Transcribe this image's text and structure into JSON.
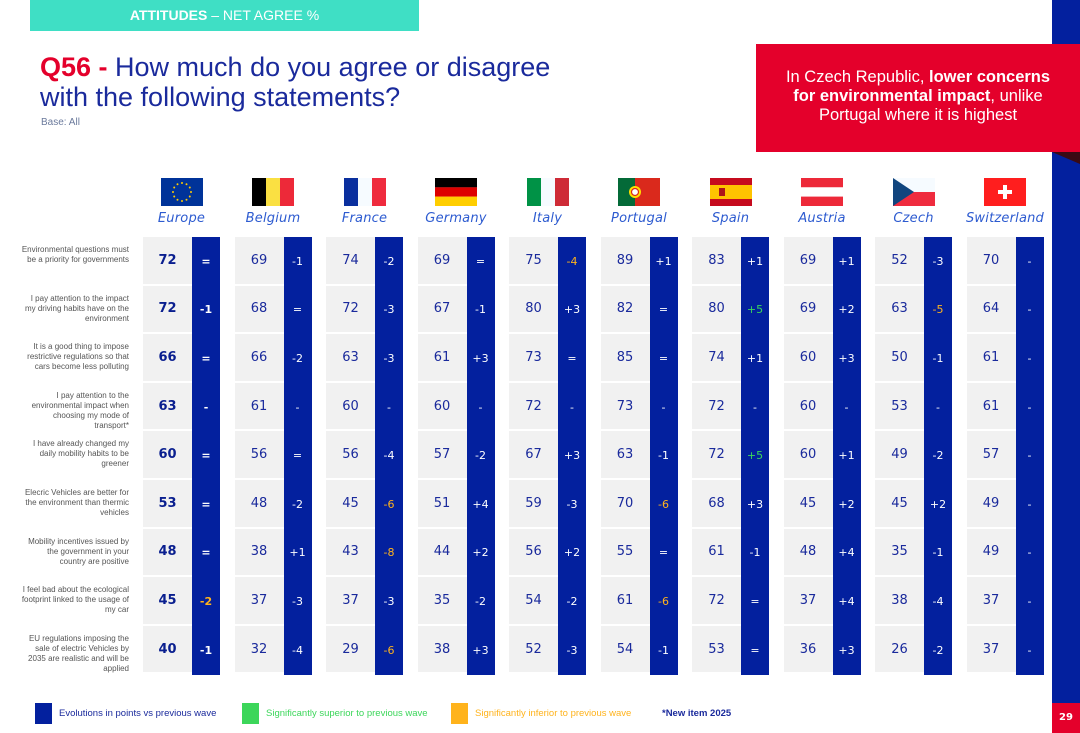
{
  "banner": {
    "bold": "ATTITUDES",
    "rest": " – NET AGREE %"
  },
  "title": {
    "qnum": "Q56 -",
    "text": " How much do you agree or disagree with the following statements?",
    "base": "Base: All"
  },
  "callout": {
    "pre": "In Czech Republic, ",
    "bold": "lower concerns for environmental impact",
    "post": ", unlike Portugal where it is highest"
  },
  "page_number": "29",
  "colors": {
    "navy": "#03209e",
    "red": "#e4002b",
    "teal": "#3fdfc5",
    "green": "#3cd65a",
    "orange": "#ffb31c"
  },
  "countries": [
    {
      "name": "Europe",
      "flag": "eu-flag-icon"
    },
    {
      "name": "Belgium",
      "flag": "belgium-flag-icon"
    },
    {
      "name": "France",
      "flag": "france-flag-icon"
    },
    {
      "name": "Germany",
      "flag": "germany-flag-icon"
    },
    {
      "name": "Italy",
      "flag": "italy-flag-icon"
    },
    {
      "name": "Portugal",
      "flag": "portugal-flag-icon"
    },
    {
      "name": "Spain",
      "flag": "spain-flag-icon"
    },
    {
      "name": "Austria",
      "flag": "austria-flag-icon"
    },
    {
      "name": "Czech",
      "flag": "czech-flag-icon"
    },
    {
      "name": "Switzerland",
      "flag": "switzerland-flag-icon"
    }
  ],
  "rows": [
    {
      "label": "Environmental questions must be a priority for governments",
      "values": [
        "72",
        "69",
        "74",
        "69",
        "75",
        "89",
        "83",
        "69",
        "52",
        "70"
      ],
      "evolutions": [
        "=",
        "-1",
        "-2",
        "=",
        "-4",
        "+1",
        "+1",
        "+1",
        "-3",
        "-"
      ],
      "status": [
        "n",
        "n",
        "n",
        "n",
        "inf",
        "n",
        "n",
        "n",
        "n",
        "n"
      ]
    },
    {
      "label": "I pay attention to the impact my driving habits have on the environment",
      "values": [
        "72",
        "68",
        "72",
        "67",
        "80",
        "82",
        "80",
        "69",
        "63",
        "64"
      ],
      "evolutions": [
        "-1",
        "=",
        "-3",
        "-1",
        "+3",
        "=",
        "+5",
        "+2",
        "-5",
        "-"
      ],
      "status": [
        "n",
        "n",
        "n",
        "n",
        "n",
        "n",
        "sup",
        "n",
        "inf",
        "n"
      ]
    },
    {
      "label": "It is a good thing to impose restrictive regulations so that cars become less polluting",
      "values": [
        "66",
        "66",
        "63",
        "61",
        "73",
        "85",
        "74",
        "60",
        "50",
        "61"
      ],
      "evolutions": [
        "=",
        "-2",
        "-3",
        "+3",
        "=",
        "=",
        "+1",
        "+3",
        "-1",
        "-"
      ],
      "status": [
        "n",
        "n",
        "n",
        "n",
        "n",
        "n",
        "n",
        "n",
        "n",
        "n"
      ]
    },
    {
      "label": "I pay attention to the environmental impact when choosing my mode of transport*",
      "values": [
        "63",
        "61",
        "60",
        "60",
        "72",
        "73",
        "72",
        "60",
        "53",
        "61"
      ],
      "evolutions": [
        "-",
        "-",
        "-",
        "-",
        "-",
        "-",
        "-",
        "-",
        "-",
        "-"
      ],
      "status": [
        "n",
        "n",
        "n",
        "n",
        "n",
        "n",
        "n",
        "n",
        "n",
        "n"
      ]
    },
    {
      "label": "I have already changed my daily mobility habits to be greener",
      "values": [
        "60",
        "56",
        "56",
        "57",
        "67",
        "63",
        "72",
        "60",
        "49",
        "57"
      ],
      "evolutions": [
        "=",
        "=",
        "-4",
        "-2",
        "+3",
        "-1",
        "+5",
        "+1",
        "-2",
        "-"
      ],
      "status": [
        "n",
        "n",
        "n",
        "n",
        "n",
        "n",
        "sup",
        "n",
        "n",
        "n"
      ]
    },
    {
      "label": "Elecric Vehicles are better for the environment than thermic vehicles",
      "values": [
        "53",
        "48",
        "45",
        "51",
        "59",
        "70",
        "68",
        "45",
        "45",
        "49"
      ],
      "evolutions": [
        "=",
        "-2",
        "-6",
        "+4",
        "-3",
        "-6",
        "+3",
        "+2",
        "+2",
        "-"
      ],
      "status": [
        "n",
        "n",
        "inf",
        "n",
        "n",
        "inf",
        "n",
        "n",
        "n",
        "n"
      ]
    },
    {
      "label": "Mobility incentives issued by the government in your country are positive",
      "values": [
        "48",
        "38",
        "43",
        "44",
        "56",
        "55",
        "61",
        "48",
        "35",
        "49"
      ],
      "evolutions": [
        "=",
        "+1",
        "-8",
        "+2",
        "+2",
        "=",
        "-1",
        "+4",
        "-1",
        "-"
      ],
      "status": [
        "n",
        "n",
        "inf",
        "n",
        "n",
        "n",
        "n",
        "n",
        "n",
        "n"
      ]
    },
    {
      "label": "I feel bad about the ecological footprint linked to the usage of my car",
      "values": [
        "45",
        "37",
        "37",
        "35",
        "54",
        "61",
        "72",
        "37",
        "38",
        "37"
      ],
      "evolutions": [
        "-2",
        "-3",
        "-3",
        "-2",
        "-2",
        "-6",
        "=",
        "+4",
        "-4",
        "-"
      ],
      "status": [
        "inf",
        "n",
        "n",
        "n",
        "n",
        "inf",
        "n",
        "n",
        "n",
        "n"
      ]
    },
    {
      "label": "EU regulations imposing the sale of electric Vehicles by 2035 are realistic and will be applied",
      "values": [
        "40",
        "32",
        "29",
        "38",
        "52",
        "54",
        "53",
        "36",
        "26",
        "37"
      ],
      "evolutions": [
        "-1",
        "-4",
        "-6",
        "+3",
        "-3",
        "-1",
        "=",
        "+3",
        "-2",
        "-"
      ],
      "status": [
        "n",
        "n",
        "inf",
        "n",
        "n",
        "n",
        "n",
        "n",
        "n",
        "n"
      ]
    }
  ],
  "legend": {
    "evolutions": "Evolutions in points vs previous wave",
    "superior": "Significantly superior to previous wave",
    "inferior": "Significantly inferior to previous wave",
    "new_item": "*New item 2025"
  }
}
